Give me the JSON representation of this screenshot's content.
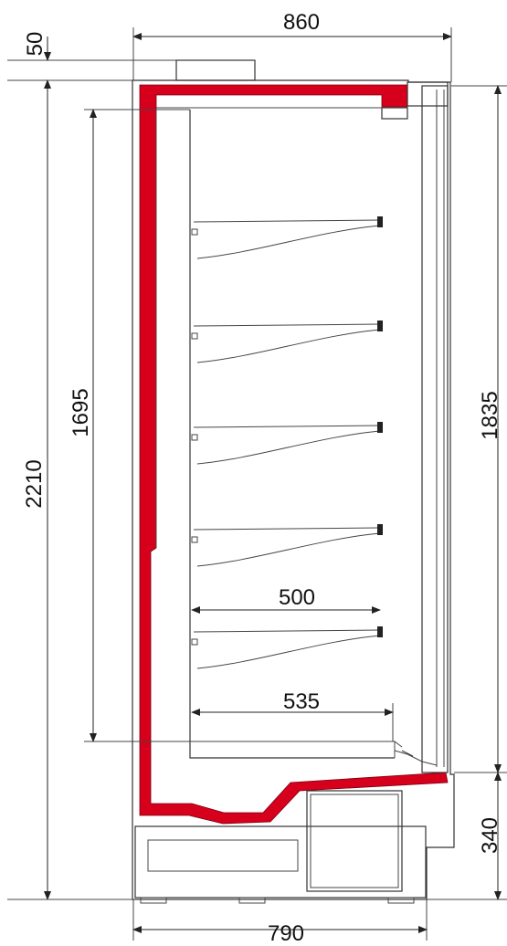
{
  "dimensions": {
    "top_width": "860",
    "top_offset": "50",
    "total_height": "2210",
    "display_height": "1695",
    "opening_height": "1835",
    "base_height": "340",
    "base_width": "790",
    "shelf_depth": "500",
    "deck_depth": "535"
  },
  "shelves": [
    {
      "label": "shelf-1"
    },
    {
      "label": "shelf-2"
    },
    {
      "label": "shelf-3"
    },
    {
      "label": "shelf-4"
    },
    {
      "label": "shelf-5"
    }
  ],
  "colors": {
    "insulation": "#d6001c",
    "line": "#333333",
    "unit_fill": "#f4f4f4"
  }
}
